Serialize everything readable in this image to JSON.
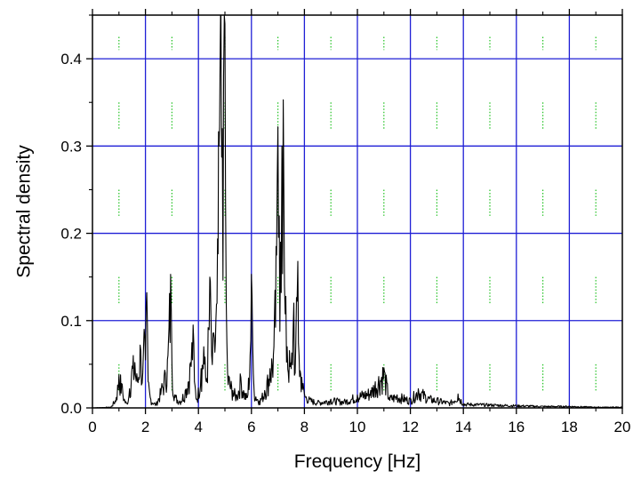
{
  "chart_data": {
    "type": "line",
    "title": "",
    "xlabel": "Frequency [Hz]",
    "ylabel": "Spectral density",
    "xlim": [
      0,
      20
    ],
    "ylim": [
      0,
      0.45
    ],
    "x_ticks": [
      0,
      2,
      4,
      6,
      8,
      10,
      12,
      14,
      16,
      18,
      20
    ],
    "x_tick_labels": [
      "0",
      "2",
      "4",
      "6",
      "8",
      "10",
      "12",
      "14",
      "16",
      "18",
      "20"
    ],
    "y_ticks": [
      0.0,
      0.1,
      0.2,
      0.3,
      0.4
    ],
    "y_tick_labels": [
      "0.0",
      "0.1",
      "0.2",
      "0.3",
      "0.4"
    ],
    "major_grid": true,
    "minor_grid": true,
    "colors": {
      "line": "#000000",
      "major_grid": "#1f1fd6",
      "minor_grid": "#22c222",
      "axes": "#000000"
    },
    "series": [
      {
        "points": [
          [
            0.0,
            0.0
          ],
          [
            0.7,
            0.001
          ],
          [
            0.9,
            0.012
          ],
          [
            1.0,
            0.038
          ],
          [
            1.1,
            0.028
          ],
          [
            1.2,
            0.01
          ],
          [
            1.3,
            0.005
          ],
          [
            1.4,
            0.022
          ],
          [
            1.5,
            0.048
          ],
          [
            1.6,
            0.052
          ],
          [
            1.7,
            0.03
          ],
          [
            1.8,
            0.072
          ],
          [
            1.9,
            0.04
          ],
          [
            1.95,
            0.09
          ],
          [
            2.0,
            0.055
          ],
          [
            2.05,
            0.132
          ],
          [
            2.1,
            0.03
          ],
          [
            2.2,
            0.01
          ],
          [
            2.4,
            0.004
          ],
          [
            2.6,
            0.022
          ],
          [
            2.75,
            0.04
          ],
          [
            2.85,
            0.06
          ],
          [
            2.95,
            0.153
          ],
          [
            3.0,
            0.05
          ],
          [
            3.1,
            0.015
          ],
          [
            3.3,
            0.008
          ],
          [
            3.5,
            0.02
          ],
          [
            3.7,
            0.052
          ],
          [
            3.8,
            0.095
          ],
          [
            3.85,
            0.03
          ],
          [
            3.95,
            0.01
          ],
          [
            4.1,
            0.045
          ],
          [
            4.2,
            0.07
          ],
          [
            4.3,
            0.03
          ],
          [
            4.45,
            0.145
          ],
          [
            4.5,
            0.06
          ],
          [
            4.6,
            0.08
          ],
          [
            4.7,
            0.12
          ],
          [
            4.78,
            0.3
          ],
          [
            4.82,
            0.4
          ],
          [
            4.85,
            0.45
          ],
          [
            4.9,
            0.32
          ],
          [
            4.95,
            0.38
          ],
          [
            5.0,
            0.44
          ],
          [
            5.05,
            0.12
          ],
          [
            5.1,
            0.04
          ],
          [
            5.3,
            0.02
          ],
          [
            5.45,
            0.015
          ],
          [
            5.6,
            0.035
          ],
          [
            5.7,
            0.02
          ],
          [
            5.85,
            0.012
          ],
          [
            5.95,
            0.06
          ],
          [
            6.0,
            0.153
          ],
          [
            6.05,
            0.07
          ],
          [
            6.1,
            0.02
          ],
          [
            6.3,
            0.008
          ],
          [
            6.5,
            0.02
          ],
          [
            6.7,
            0.045
          ],
          [
            6.85,
            0.07
          ],
          [
            6.95,
            0.175
          ],
          [
            7.0,
            0.322
          ],
          [
            7.05,
            0.22
          ],
          [
            7.1,
            0.19
          ],
          [
            7.15,
            0.3
          ],
          [
            7.2,
            0.353
          ],
          [
            7.25,
            0.14
          ],
          [
            7.35,
            0.07
          ],
          [
            7.5,
            0.045
          ],
          [
            7.6,
            0.12
          ],
          [
            7.65,
            0.04
          ],
          [
            7.75,
            0.168
          ],
          [
            7.8,
            0.06
          ],
          [
            7.9,
            0.035
          ],
          [
            8.0,
            0.016
          ],
          [
            8.2,
            0.01
          ],
          [
            8.5,
            0.007
          ],
          [
            9.0,
            0.01
          ],
          [
            9.5,
            0.008
          ],
          [
            10.0,
            0.015
          ],
          [
            10.5,
            0.02
          ],
          [
            11.0,
            0.046
          ],
          [
            11.2,
            0.012
          ],
          [
            11.5,
            0.015
          ],
          [
            12.0,
            0.01
          ],
          [
            12.3,
            0.022
          ],
          [
            12.7,
            0.012
          ],
          [
            13.0,
            0.01
          ],
          [
            13.5,
            0.006
          ],
          [
            13.8,
            0.016
          ],
          [
            14.0,
            0.005
          ],
          [
            15.0,
            0.004
          ],
          [
            16.0,
            0.003
          ],
          [
            17.0,
            0.002
          ],
          [
            18.0,
            0.002
          ],
          [
            19.0,
            0.001
          ],
          [
            20.0,
            0.001
          ]
        ]
      }
    ]
  }
}
